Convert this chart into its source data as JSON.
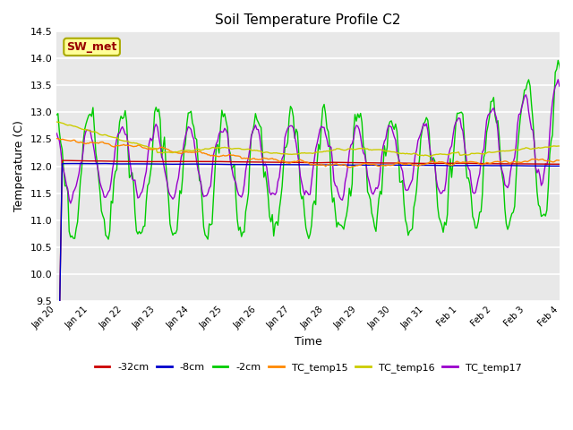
{
  "title": "Soil Temperature Profile C2",
  "xlabel": "Time",
  "ylabel": "Temperature (C)",
  "ylim": [
    9.5,
    14.5
  ],
  "background_color": "#e8e8e8",
  "grid_color": "#ffffff",
  "legend_label": "SW_met",
  "series": {
    "-32cm": {
      "color": "#cc0000"
    },
    "-8cm": {
      "color": "#0000cc"
    },
    "-2cm": {
      "color": "#00cc00"
    },
    "TC_temp15": {
      "color": "#ff8800"
    },
    "TC_temp16": {
      "color": "#cccc00"
    },
    "TC_temp17": {
      "color": "#9900cc"
    }
  },
  "x_tick_labels": [
    "Jan 20",
    "Jan 21",
    "Jan 22",
    "Jan 23",
    "Jan 24",
    "Jan 25",
    "Jan 26",
    "Jan 27",
    "Jan 28",
    "Jan 29",
    "Jan 30",
    "Jan 31",
    "Feb 1",
    "Feb 2",
    "Feb 3",
    "Feb 4"
  ],
  "n_days": 16,
  "yticks": [
    9.5,
    10.0,
    10.5,
    11.0,
    11.5,
    12.0,
    12.5,
    13.0,
    13.5,
    14.0,
    14.5
  ]
}
